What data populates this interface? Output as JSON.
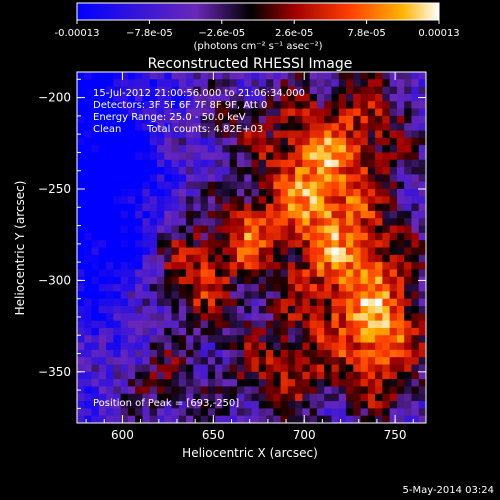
{
  "chart_data": {
    "type": "heatmap",
    "title": "Reconstructed RHESSI Image",
    "xlabel": "Heliocentric X (arcsec)",
    "ylabel": "Heliocentric Y (arcsec)",
    "xlim": [
      575,
      767
    ],
    "ylim": [
      -378,
      -186
    ],
    "x_ticks": [
      600,
      650,
      700,
      750
    ],
    "y_ticks": [
      -200,
      -250,
      -300,
      -350
    ],
    "colorbar": {
      "min": -0.00013,
      "max": 0.00013,
      "tick_labels": [
        "-0.00013",
        "−7.8e-05",
        "−2.6e-05",
        "2.6e-05",
        "7.8e-05",
        "0.00013"
      ],
      "tick_values": [
        -0.00013,
        -7.8e-05,
        -2.6e-05,
        2.6e-05,
        7.8e-05,
        0.00013
      ],
      "units_label": "(photons cm⁻² s⁻¹ asec⁻²)",
      "colors": [
        "#0000ff",
        "#6a28b8",
        "#000000",
        "#a00000",
        "#ff3c00",
        "#ffb400",
        "#ffffff"
      ]
    },
    "peak": {
      "x": 693,
      "y": -250
    },
    "sources": [
      {
        "x": 705,
        "y": -240,
        "sx": 22,
        "sy": 30,
        "amp": 1.0
      },
      {
        "x": 725,
        "y": -300,
        "sx": 25,
        "sy": 35,
        "amp": 0.85
      },
      {
        "x": 640,
        "y": -295,
        "sx": 18,
        "sy": 22,
        "amp": 0.8
      },
      {
        "x": 745,
        "y": -335,
        "sx": 15,
        "sy": 25,
        "amp": 0.7
      },
      {
        "x": 685,
        "y": -350,
        "sx": 20,
        "sy": 18,
        "amp": 0.55
      },
      {
        "x": 670,
        "y": -275,
        "sx": 10,
        "sy": 14,
        "amp": 0.6
      },
      {
        "x": 620,
        "y": -355,
        "sx": 14,
        "sy": 14,
        "amp": 0.45
      },
      {
        "x": 740,
        "y": -210,
        "sx": 14,
        "sy": 18,
        "amp": 0.45
      },
      {
        "x": 660,
        "y": -215,
        "sx": 12,
        "sy": 12,
        "amp": 0.3
      }
    ],
    "negative_region": {
      "x": 585,
      "y": -245,
      "sx": 25,
      "sy": 55,
      "amp": -0.9
    }
  },
  "annotations": {
    "time_range": "15-Jul-2012 21:00:56.000 to 21:06:34.000",
    "detectors": "Detectors: 3F 5F 6F 7F 8F 9F, Att 0",
    "energy_range": "Energy Range: 25.0 - 50.0 keV",
    "clean": "Clean",
    "total_counts": "Total counts: 4.82E+03",
    "peak_position": "Position of Peak = [693,-250]"
  },
  "footer": {
    "date": "5-May-2014 03:24"
  }
}
